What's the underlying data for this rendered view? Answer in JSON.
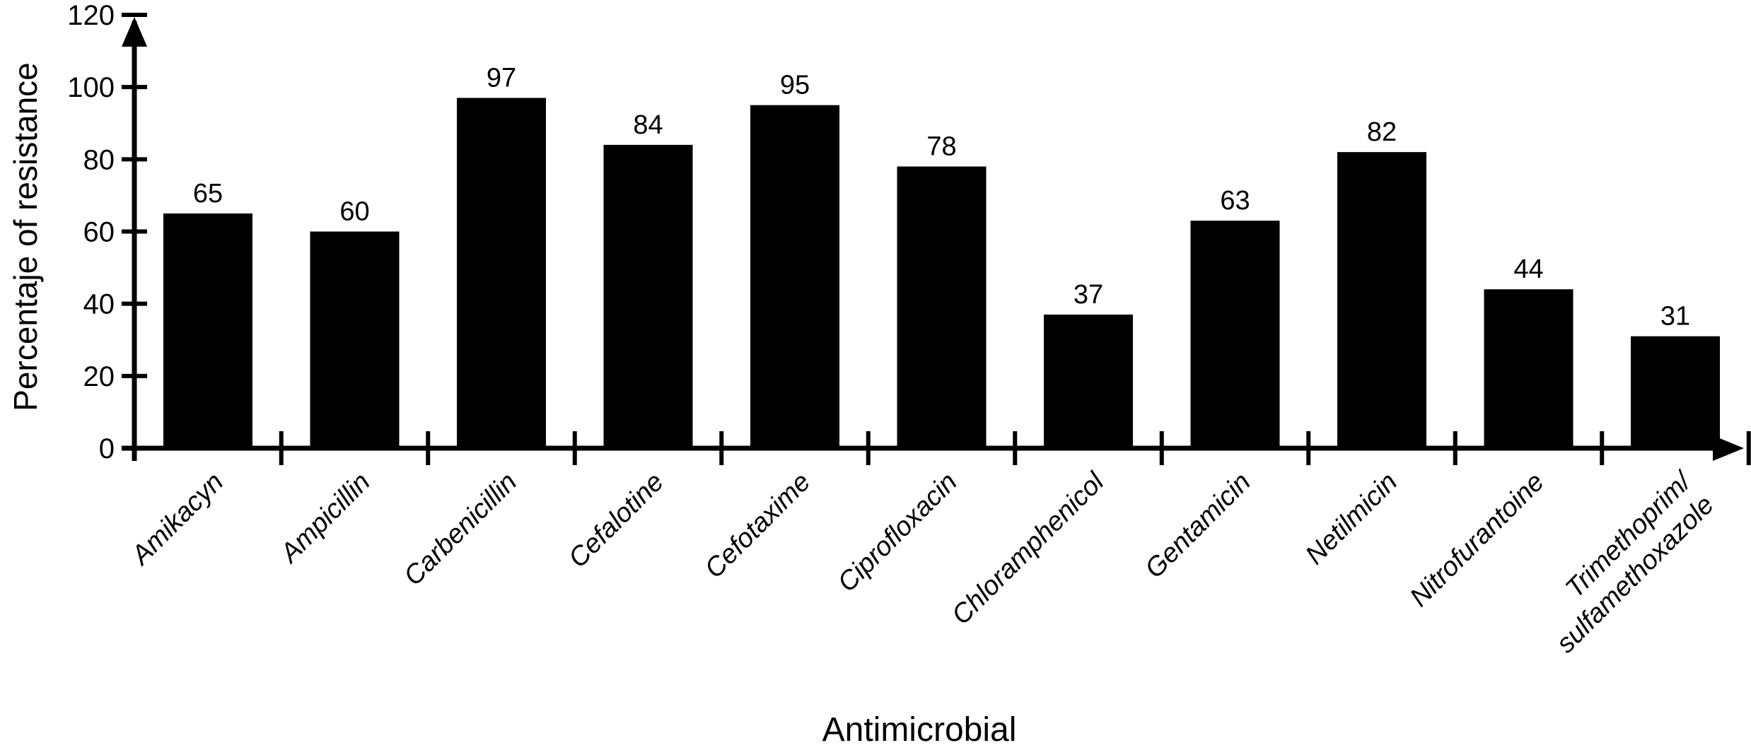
{
  "figure": {
    "background": "#ffffff",
    "bar_color": "#000000",
    "axis_color": "#000000",
    "text_color": "#000000"
  },
  "chart_data": {
    "type": "bar",
    "title": "",
    "xlabel": "Antimicrobial",
    "ylabel": "Percentaje of resistance",
    "categories": [
      "Amikacyn",
      "Ampicillin",
      "Carbenicillin",
      "Cefalotine",
      "Cefotaxime",
      "Ciprofloxacin",
      "Chloramphenicol",
      "Gentamicin",
      "Netilmicin",
      "Nitrofurantoine",
      "Trimethoprim/\nsulfamethoxazole"
    ],
    "values": [
      65,
      60,
      97,
      84,
      95,
      78,
      37,
      63,
      82,
      44,
      31
    ],
    "value_labels": [
      "65",
      "60",
      "97",
      "84",
      "95",
      "78",
      "37",
      "63",
      "82",
      "44",
      "31"
    ],
    "yticks": [
      0,
      20,
      40,
      60,
      80,
      100,
      120
    ],
    "ylim": [
      0,
      120
    ],
    "grid": "off",
    "legend": "none",
    "bar_value_labels_shown": true,
    "x_tick_style": "between-categories",
    "category_label_rotation_deg": 45,
    "category_label_style": "italic",
    "axis_arrows": "up-and-right"
  }
}
